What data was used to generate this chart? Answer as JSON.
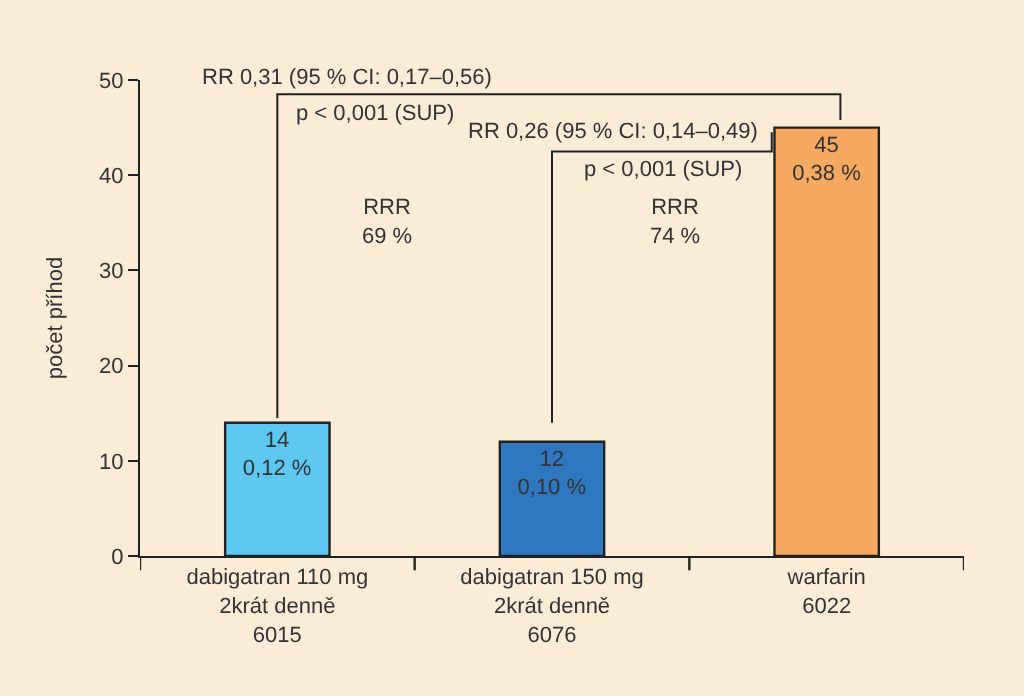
{
  "chart_data": {
    "type": "bar",
    "categories": [
      "dabigatran 110 mg\n2krát denně\n6015",
      "dabigatran 150 mg\n2krát denně\n6076",
      "warfarin\n6022"
    ],
    "values": [
      14,
      12,
      45
    ],
    "colors": [
      "#5cc8f2",
      "#2f78c0",
      "#f5a860"
    ],
    "value_labels": [
      "14\n0,12 %",
      "12\n0,10 %",
      "45\n0,38 %"
    ],
    "ylabel": "počet příhod",
    "ylim": [
      0,
      50
    ],
    "yticks": [
      0,
      10,
      20,
      30,
      40,
      50
    ],
    "grid": false,
    "legend": false,
    "annotations": [
      "RR 0,31 (95 % CI: 0,17–0,56)",
      "p < 0,001 (SUP)",
      "RR 0,26 (95 % CI: 0,14–0,49)",
      "p < 0,001 (SUP)",
      "RRR\n69 %",
      "RRR\n74 %"
    ]
  }
}
